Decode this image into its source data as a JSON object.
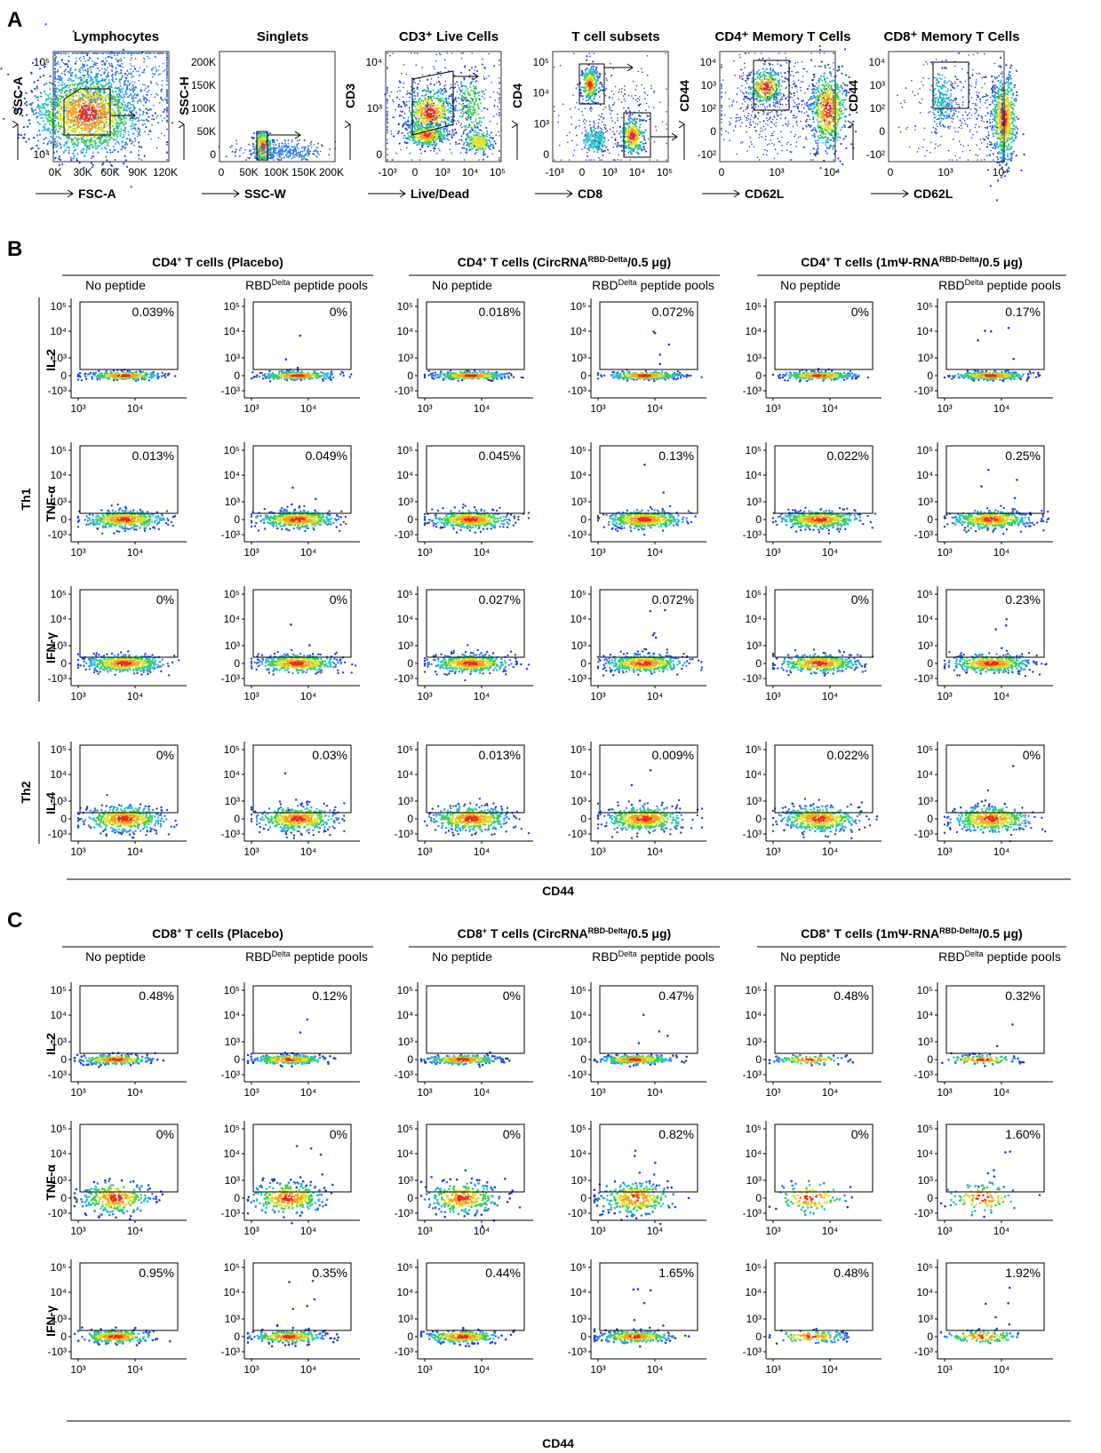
{
  "panels": {
    "A": {
      "letter": "A"
    },
    "B": {
      "letter": "B",
      "x_label": "CD44"
    },
    "C": {
      "letter": "C",
      "x_label": "CD44"
    }
  },
  "conditions": {
    "no_peptide": "No peptide",
    "rbd_prefix": "RBD",
    "rbd_sup": "Delta",
    "rbd_suffix": " peptide pools"
  },
  "groups": {
    "B": [
      {
        "parts": [
          {
            "t": "CD4"
          },
          {
            "t": "+",
            "sup": true
          },
          {
            "t": " T cells (Placebo)"
          }
        ]
      },
      {
        "parts": [
          {
            "t": "CD4"
          },
          {
            "t": "+",
            "sup": true
          },
          {
            "t": " T cells (CircRNA"
          },
          {
            "t": "RBD-Delta",
            "sup": true
          },
          {
            "t": "/0.5 μg)"
          }
        ]
      },
      {
        "parts": [
          {
            "t": "CD4"
          },
          {
            "t": "+",
            "sup": true
          },
          {
            "t": " T cells (1mΨ-RNA"
          },
          {
            "t": "RBD-Delta",
            "sup": true
          },
          {
            "t": "/0.5 μg)"
          }
        ]
      }
    ],
    "C": [
      {
        "parts": [
          {
            "t": "CD8"
          },
          {
            "t": "+",
            "sup": true
          },
          {
            "t": " T cells (Placebo)"
          }
        ]
      },
      {
        "parts": [
          {
            "t": "CD8"
          },
          {
            "t": "+",
            "sup": true
          },
          {
            "t": " T cells (CircRNA"
          },
          {
            "t": "RBD-Delta",
            "sup": true
          },
          {
            "t": "/0.5 μg)"
          }
        ]
      },
      {
        "parts": [
          {
            "t": "CD8"
          },
          {
            "t": "+",
            "sup": true
          },
          {
            "t": " T cells (1mΨ-RNA"
          },
          {
            "t": "RBD-Delta",
            "sup": true
          },
          {
            "t": "/0.5 μg)"
          }
        ]
      }
    ]
  },
  "row_groups": {
    "B": [
      "Th1",
      "Th2"
    ]
  },
  "chart_data": [
    {
      "type": "scatter",
      "panel": "A",
      "gating_plots": [
        {
          "title": "Lymphocytes",
          "xlabel": "FSC-A",
          "ylabel": "SSC-A",
          "xticks": [
            "0K",
            "30K",
            "60K",
            "90K",
            "120K"
          ],
          "yticks": [
            "10⁴",
            "10⁵"
          ]
        },
        {
          "title": "Singlets",
          "xlabel": "SSC-W",
          "ylabel": "SSC-H",
          "xticks": [
            "0",
            "50K",
            "100K",
            "150K",
            "200K"
          ],
          "yticks": [
            "0",
            "50K",
            "100K",
            "150K",
            "200K"
          ]
        },
        {
          "title": "CD3⁺ Live Cells",
          "xlabel": "Live/Dead",
          "ylabel": "CD3",
          "xticks": [
            "-10³",
            "0",
            "10³",
            "10⁴",
            "10⁵"
          ],
          "yticks": [
            "0",
            "10³",
            "10⁴"
          ]
        },
        {
          "title": "T cell subsets",
          "xlabel": "CD8",
          "ylabel": "CD4",
          "xticks": [
            "-10³",
            "0",
            "10³",
            "10⁴",
            "10⁵"
          ],
          "yticks": [
            "0",
            "10³",
            "10⁴",
            "10⁵"
          ]
        },
        {
          "title": "CD4⁺ Memory T Cells",
          "xlabel": "CD62L",
          "ylabel": "CD44",
          "xticks": [
            "0",
            "10³",
            "10⁴"
          ],
          "yticks": [
            "-10²",
            "0",
            "10²",
            "10³",
            "10⁴"
          ]
        },
        {
          "title": "CD8⁺ Memory T Cells",
          "xlabel": "CD62L",
          "ylabel": "CD44",
          "xticks": [
            "0",
            "10³",
            "10⁴"
          ],
          "yticks": [
            "-10²",
            "0",
            "10²",
            "10³",
            "10⁴"
          ]
        }
      ]
    },
    {
      "type": "scatter",
      "panel": "B",
      "xlabel": "CD44",
      "x_ticks": [
        "10³",
        "10⁴"
      ],
      "y_ticks": [
        "-10³",
        "0",
        "10³",
        "10⁴",
        "10⁵"
      ],
      "columns": [
        "Placebo / No peptide",
        "Placebo / RBD peptide pools",
        "CircRNA / No peptide",
        "CircRNA / RBD peptide pools",
        "1mΨ-RNA / No peptide",
        "1mΨ-RNA / RBD peptide pools"
      ],
      "rows": [
        {
          "group": "Th1",
          "marker": "IL-2",
          "percentages": [
            "0.039%",
            "0%",
            "0.018%",
            "0.072%",
            "0%",
            "0.17%"
          ]
        },
        {
          "group": "Th1",
          "marker": "TNF-α",
          "percentages": [
            "0.013%",
            "0.049%",
            "0.045%",
            "0.13%",
            "0.022%",
            "0.25%"
          ]
        },
        {
          "group": "Th1",
          "marker": "IFN-γ",
          "percentages": [
            "0%",
            "0%",
            "0.027%",
            "0.072%",
            "0%",
            "0.23%"
          ]
        },
        {
          "group": "Th2",
          "marker": "IL-4",
          "percentages": [
            "0%",
            "0.03%",
            "0.013%",
            "0.009%",
            "0.022%",
            "0%"
          ]
        }
      ]
    },
    {
      "type": "scatter",
      "panel": "C",
      "xlabel": "CD44",
      "x_ticks": [
        "10³",
        "10⁴"
      ],
      "y_ticks": [
        "-10³",
        "0",
        "10³",
        "10⁴",
        "10⁵"
      ],
      "columns": [
        "Placebo / No peptide",
        "Placebo / RBD peptide pools",
        "CircRNA / No peptide",
        "CircRNA / RBD peptide pools",
        "1mΨ-RNA / No peptide",
        "1mΨ-RNA / RBD peptide pools"
      ],
      "rows": [
        {
          "marker": "IL-2",
          "percentages": [
            "0.48%",
            "0.12%",
            "0%",
            "0.47%",
            "0.48%",
            "0.32%"
          ]
        },
        {
          "marker": "TNF-α",
          "percentages": [
            "0%",
            "0%",
            "0%",
            "0.82%",
            "0%",
            "1.60%"
          ]
        },
        {
          "marker": "IFN-γ",
          "percentages": [
            "0.95%",
            "0.35%",
            "0.44%",
            "1.65%",
            "0.48%",
            "1.92%"
          ]
        }
      ]
    }
  ]
}
